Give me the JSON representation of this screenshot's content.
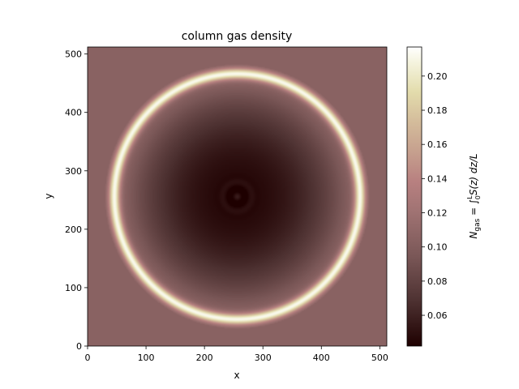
{
  "chart_data": {
    "type": "heatmap",
    "title": "column gas density",
    "xlabel": "x",
    "ylabel": "y",
    "xlim": [
      0,
      512
    ],
    "ylim": [
      0,
      512
    ],
    "x_ticks": [
      0,
      100,
      200,
      300,
      400,
      500
    ],
    "y_ticks": [
      0,
      100,
      200,
      300,
      400,
      500
    ],
    "colormap": "pink",
    "colorbar": {
      "label_main": "N",
      "label_sub": "gas",
      "label_rest": " = ∫",
      "label_upper": "L",
      "label_lower": "0",
      "label_integrand": "S(z) dz/L",
      "vmin": 0.042,
      "vmax": 0.217,
      "ticks": [
        0.06,
        0.08,
        0.1,
        0.12,
        0.14,
        0.16,
        0.18,
        0.2
      ],
      "tick_labels": [
        "0.06",
        "0.08",
        "0.10",
        "0.12",
        "0.14",
        "0.16",
        "0.18",
        "0.20"
      ]
    },
    "field": {
      "center": [
        256,
        256
      ],
      "background_value": 0.105,
      "center_value": 0.045,
      "ring_radius": 216,
      "ring_peak_value": 0.217,
      "central_ripple_radius": 40
    },
    "grid": false
  }
}
